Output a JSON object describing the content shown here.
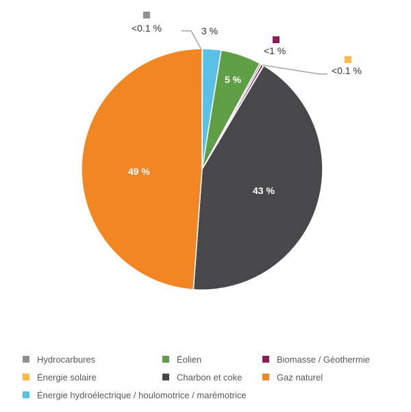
{
  "chart_data": {
    "type": "pie",
    "title": "",
    "start_angle_deg": 0,
    "direction": "clockwise",
    "slices": [
      {
        "name": "Hydrocarbures",
        "value": 0.05,
        "label": "<0.1 %",
        "color": "#8E8E96"
      },
      {
        "name": "Énergie hydroélectrique / houlomotrice / marémotrice",
        "value": 2.5,
        "label": "3 %",
        "color": "#5BC0E6"
      },
      {
        "name": "Éolien",
        "value": 5.4,
        "label": "5 %",
        "color": "#5E9E45"
      },
      {
        "name": "Hydrocarbures",
        "value": 0.25,
        "label": "",
        "color": "#9B9BA3"
      },
      {
        "name": "Biomasse / Géothermie",
        "value": 0.3,
        "label": "<1 %",
        "color": "#8C1D5A"
      },
      {
        "name": "Énergie solaire",
        "value": 0.05,
        "label": "<0.1 %",
        "color": "#FDB94A"
      },
      {
        "name": "Charbon et coke",
        "value": 42.6,
        "label": "43 %",
        "color": "#48484A"
      },
      {
        "name": "Gaz naturel",
        "value": 48.85,
        "label": "49 %",
        "color": "#F28623"
      }
    ],
    "legend": [
      {
        "name": "Hydrocarbures",
        "color": "#8E8E96"
      },
      {
        "name": "Éolien",
        "color": "#5E9E45"
      },
      {
        "name": "Biomasse / Géothermie",
        "color": "#8C1D5A"
      },
      {
        "name": "Énergie solaire",
        "color": "#FDB94A"
      },
      {
        "name": "Charbon et coke",
        "color": "#48484A"
      },
      {
        "name": "Gaz naturel",
        "color": "#F28623"
      },
      {
        "name": "Énergie hydroélectrique / houlomotrice / marémotrice",
        "color": "#5BC0E6"
      }
    ],
    "legend_position": "bottom"
  },
  "labels": {
    "gaz_naturel": "49 %",
    "charbon": "43 %",
    "eolien": "5 %",
    "hydro": "3 %",
    "hydrocarbures": "<0.1 %",
    "biomasse": "<1 %",
    "solaire": "<0.1 %"
  },
  "legend": {
    "items": [
      {
        "label": "Hydrocarbures",
        "color": "#8E8E96"
      },
      {
        "label": "Éolien",
        "color": "#5E9E45"
      },
      {
        "label": "Biomasse / Géothermie",
        "color": "#8C1D5A"
      },
      {
        "label": "Énergie solaire",
        "color": "#FDB94A"
      },
      {
        "label": "Charbon et coke",
        "color": "#48484A"
      },
      {
        "label": "Gaz naturel",
        "color": "#F28623"
      },
      {
        "label": "Énergie hydroélectrique / houlomotrice / marémotrice",
        "color": "#5BC0E6"
      }
    ]
  }
}
